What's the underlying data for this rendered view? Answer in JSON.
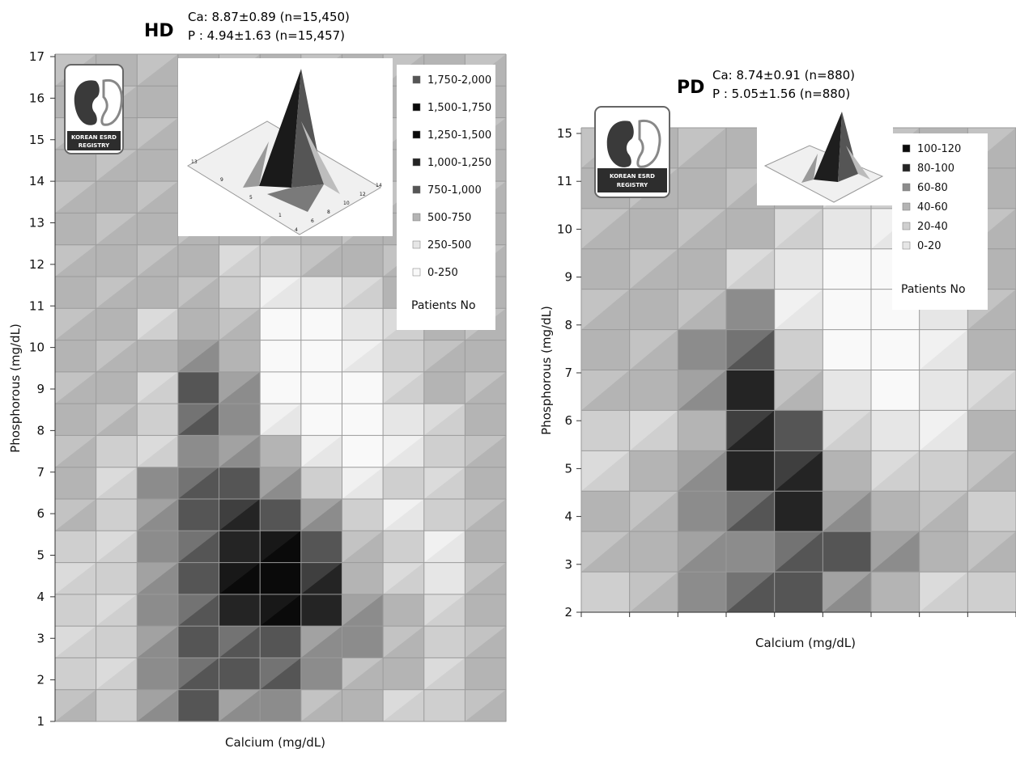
{
  "colors": {
    "0": "#f9f9f9",
    "1": "#e6e6e6",
    "2": "#cfcfcf",
    "3": "#b4b4b4",
    "4": "#8c8c8c",
    "5": "#555555",
    "6": "#242424",
    "7": "#0a0a0a",
    "frame": "#5a4a3a",
    "logo_bg": "#2d2d2d"
  },
  "logo": {
    "line1": "KOREAN ESRD",
    "line2": "REGISTRY"
  },
  "chart_data": [
    {
      "type": "heatmap",
      "panel": "HD",
      "stats": [
        "Ca: 8.87±0.89 (n=15,450)",
        "P : 4.94±1.63 (n=15,457)"
      ],
      "xlabel": "Calcium (mg/dL)",
      "ylabel": "Phosphorous (mg/dL)",
      "ylim": [
        1,
        17
      ],
      "yticks": [
        "1",
        "2",
        "3",
        "4",
        "5",
        "6",
        "7",
        "8",
        "9",
        "10",
        "11",
        "12",
        "13",
        "14",
        "15",
        "16",
        "17"
      ],
      "x_bins": 11,
      "legend_title": "Patients No",
      "legend": [
        {
          "label": "1,750-2,000",
          "level": 5
        },
        {
          "label": "1,500-1,750",
          "level": 7
        },
        {
          "label": "1,250-1,500",
          "level": 7
        },
        {
          "label": "1,000-1,250",
          "level": 6
        },
        {
          "label": "750-1,000",
          "level": 5
        },
        {
          "label": "500-750",
          "level": 3
        },
        {
          "label": "250-500",
          "level": 1
        },
        {
          "label": "0-250",
          "level": 0
        }
      ],
      "inset_ticks_y": [
        "13",
        "9",
        "5",
        "1"
      ],
      "inset_ticks_x": [
        "4",
        "6",
        "8",
        "10",
        "12",
        "14"
      ],
      "grid": [
        [
          3,
          3,
          3,
          3,
          3,
          3,
          3,
          3,
          3,
          3,
          3
        ],
        [
          3,
          3,
          3,
          3,
          3,
          3,
          3,
          3,
          3,
          3,
          3
        ],
        [
          3,
          3,
          3,
          3,
          3,
          3,
          3,
          3,
          3,
          3,
          3
        ],
        [
          3,
          3,
          3,
          3,
          3,
          3,
          3,
          3,
          3,
          3,
          3
        ],
        [
          3,
          3,
          3,
          3,
          3,
          3,
          3,
          3,
          3,
          3,
          3
        ],
        [
          3,
          3,
          3,
          3,
          3,
          3,
          3,
          3,
          3,
          3,
          3
        ],
        [
          3,
          3,
          3,
          3,
          2,
          2,
          3,
          3,
          3,
          3,
          3
        ],
        [
          3,
          3,
          3,
          3,
          2,
          1,
          1,
          2,
          3,
          3,
          3
        ],
        [
          3,
          3,
          2,
          3,
          3,
          0,
          0,
          1,
          2,
          3,
          3
        ],
        [
          3,
          3,
          3,
          4,
          3,
          0,
          0,
          1,
          2,
          3,
          3
        ],
        [
          3,
          3,
          2,
          5,
          4,
          0,
          0,
          0,
          2,
          3,
          3
        ],
        [
          3,
          3,
          2,
          5,
          4,
          1,
          0,
          0,
          1,
          2,
          3
        ],
        [
          3,
          2,
          2,
          4,
          4,
          3,
          1,
          0,
          1,
          2,
          3
        ],
        [
          3,
          2,
          4,
          5,
          5,
          4,
          2,
          1,
          2,
          2,
          3
        ],
        [
          3,
          2,
          4,
          5,
          6,
          5,
          4,
          2,
          1,
          2,
          3
        ],
        [
          2,
          2,
          4,
          5,
          6,
          7,
          5,
          3,
          2,
          1,
          3
        ],
        [
          2,
          2,
          4,
          5,
          7,
          7,
          6,
          3,
          2,
          1,
          3
        ],
        [
          2,
          2,
          4,
          5,
          6,
          7,
          6,
          4,
          3,
          2,
          3
        ],
        [
          2,
          2,
          4,
          5,
          5,
          5,
          4,
          4,
          3,
          2,
          3
        ],
        [
          2,
          2,
          4,
          5,
          5,
          5,
          4,
          3,
          3,
          2,
          3
        ],
        [
          3,
          2,
          4,
          5,
          4,
          4,
          3,
          3,
          2,
          2,
          3
        ]
      ]
    },
    {
      "type": "heatmap",
      "panel": "PD",
      "stats": [
        "Ca: 8.74±0.91 (n=880)",
        "P : 5.05±1.56 (n=880)"
      ],
      "xlabel": "Calcium (mg/dL)",
      "ylabel": "Phosphorous (mg/dL)",
      "yticks": [
        "2",
        "3",
        "4",
        "5",
        "6",
        "7",
        "8",
        "9",
        "10",
        "11",
        "15"
      ],
      "x_bins": 9,
      "legend_title": "Patients No",
      "legend": [
        {
          "label": "100-120",
          "level": 7
        },
        {
          "label": "80-100",
          "level": 6
        },
        {
          "label": "60-80",
          "level": 4
        },
        {
          "label": "40-60",
          "level": 3
        },
        {
          "label": "20-40",
          "level": 2
        },
        {
          "label": "0-20",
          "level": 1
        }
      ],
      "grid": [
        [
          3,
          3,
          3,
          3,
          3,
          3,
          3,
          3,
          3
        ],
        [
          3,
          3,
          3,
          3,
          3,
          2,
          2,
          3,
          3
        ],
        [
          3,
          3,
          3,
          3,
          2,
          1,
          1,
          2,
          3
        ],
        [
          3,
          3,
          3,
          2,
          1,
          0,
          0,
          1,
          3
        ],
        [
          3,
          3,
          3,
          4,
          1,
          0,
          0,
          1,
          3
        ],
        [
          3,
          3,
          4,
          5,
          2,
          0,
          0,
          1,
          3
        ],
        [
          3,
          3,
          4,
          6,
          3,
          1,
          0,
          1,
          2
        ],
        [
          2,
          2,
          3,
          6,
          5,
          2,
          1,
          1,
          3
        ],
        [
          2,
          3,
          4,
          6,
          6,
          3,
          2,
          2,
          3
        ],
        [
          3,
          3,
          4,
          5,
          6,
          4,
          3,
          3,
          2
        ],
        [
          3,
          3,
          4,
          4,
          5,
          5,
          4,
          3,
          3
        ],
        [
          2,
          3,
          4,
          5,
          5,
          4,
          3,
          2,
          2
        ]
      ]
    }
  ]
}
